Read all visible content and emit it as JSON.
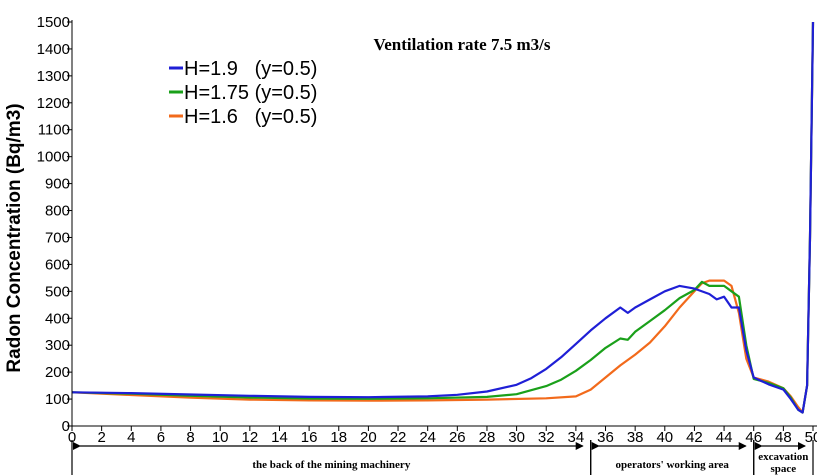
{
  "chart_data": {
    "type": "line",
    "title": "Ventilation rate 7.5 m3/s",
    "ylabel": "Radon Concentration (Bq/m3)",
    "xlabel": "",
    "xlim": [
      0,
      50
    ],
    "ylim": [
      0,
      1500
    ],
    "xticks": [
      0,
      2,
      4,
      6,
      8,
      10,
      12,
      14,
      16,
      18,
      20,
      22,
      24,
      26,
      28,
      30,
      32,
      34,
      36,
      38,
      40,
      42,
      44,
      46,
      48,
      50
    ],
    "xtick_labels": [
      "0",
      "2",
      "4",
      "6",
      "8",
      "10",
      "12",
      "14",
      "16",
      "18",
      "20",
      "22",
      "24",
      "26",
      "28",
      "30",
      "32",
      "34",
      "36",
      "38",
      "40",
      "42",
      "44",
      "46",
      "48",
      "50"
    ],
    "yticks": [
      0,
      100,
      200,
      300,
      400,
      500,
      600,
      700,
      800,
      900,
      1000,
      1100,
      1200,
      1300,
      1400,
      1500
    ],
    "ytick_labels": [
      "0",
      "100",
      "200",
      "300",
      "400",
      "500",
      "600",
      "700",
      "800",
      "900",
      "1000",
      "1100",
      "1200",
      "1300",
      "1400",
      "1500"
    ],
    "grid": false,
    "legend_position": "top-left",
    "series": [
      {
        "name": "H=1.9   (y=0.5)",
        "color": "#1f1fd6",
        "x": [
          0,
          4,
          8,
          12,
          16,
          20,
          24,
          26,
          28,
          30,
          31,
          32,
          33,
          34,
          35,
          36,
          37,
          37.5,
          38,
          39,
          40,
          41,
          42,
          43,
          43.5,
          44,
          44.5,
          45,
          45.5,
          46,
          47,
          48,
          48.5,
          49,
          49.3,
          49.6,
          49.8,
          50
        ],
        "y": [
          125,
          122,
          117,
          112,
          108,
          107,
          110,
          116,
          128,
          153,
          178,
          212,
          255,
          305,
          355,
          400,
          440,
          420,
          440,
          470,
          500,
          520,
          510,
          490,
          470,
          480,
          440,
          440,
          280,
          180,
          155,
          135,
          100,
          60,
          50,
          150,
          700,
          1500
        ]
      },
      {
        "name": "H=1.75 (y=0.5)",
        "color": "#1aa01a",
        "x": [
          0,
          4,
          8,
          12,
          16,
          20,
          24,
          28,
          30,
          32,
          33,
          34,
          35,
          36,
          37,
          37.5,
          38,
          39,
          40,
          41,
          42,
          42.5,
          43,
          44,
          44.5,
          45,
          45.5,
          46,
          47,
          48,
          48.5,
          49,
          49.3,
          49.6,
          49.8,
          50
        ],
        "y": [
          125,
          120,
          112,
          106,
          102,
          101,
          103,
          108,
          118,
          148,
          172,
          205,
          245,
          290,
          325,
          320,
          350,
          390,
          430,
          475,
          505,
          535,
          520,
          520,
          500,
          480,
          300,
          175,
          160,
          140,
          105,
          60,
          50,
          150,
          700,
          1500
        ]
      },
      {
        "name": "H=1.6   (y=0.5)",
        "color": "#f26a1b",
        "x": [
          0,
          4,
          8,
          12,
          16,
          20,
          24,
          28,
          32,
          34,
          35,
          36,
          37,
          38,
          39,
          40,
          41,
          42,
          42.5,
          43,
          44,
          44.5,
          45,
          45.5,
          46,
          47,
          48,
          48.5,
          49,
          49.3,
          49.6,
          49.8,
          50
        ],
        "y": [
          125,
          115,
          105,
          98,
          95,
          94,
          95,
          98,
          103,
          110,
          135,
          180,
          225,
          265,
          310,
          370,
          440,
          500,
          530,
          540,
          540,
          520,
          420,
          250,
          180,
          165,
          140,
          110,
          70,
          50,
          150,
          700,
          1500
        ]
      }
    ],
    "regions": [
      {
        "label": "the back of the mining machinery",
        "from": 0,
        "to": 35
      },
      {
        "label": "operators' working area",
        "from": 35,
        "to": 46
      },
      {
        "label": "excavation space",
        "from": 46,
        "to": 50
      }
    ]
  }
}
